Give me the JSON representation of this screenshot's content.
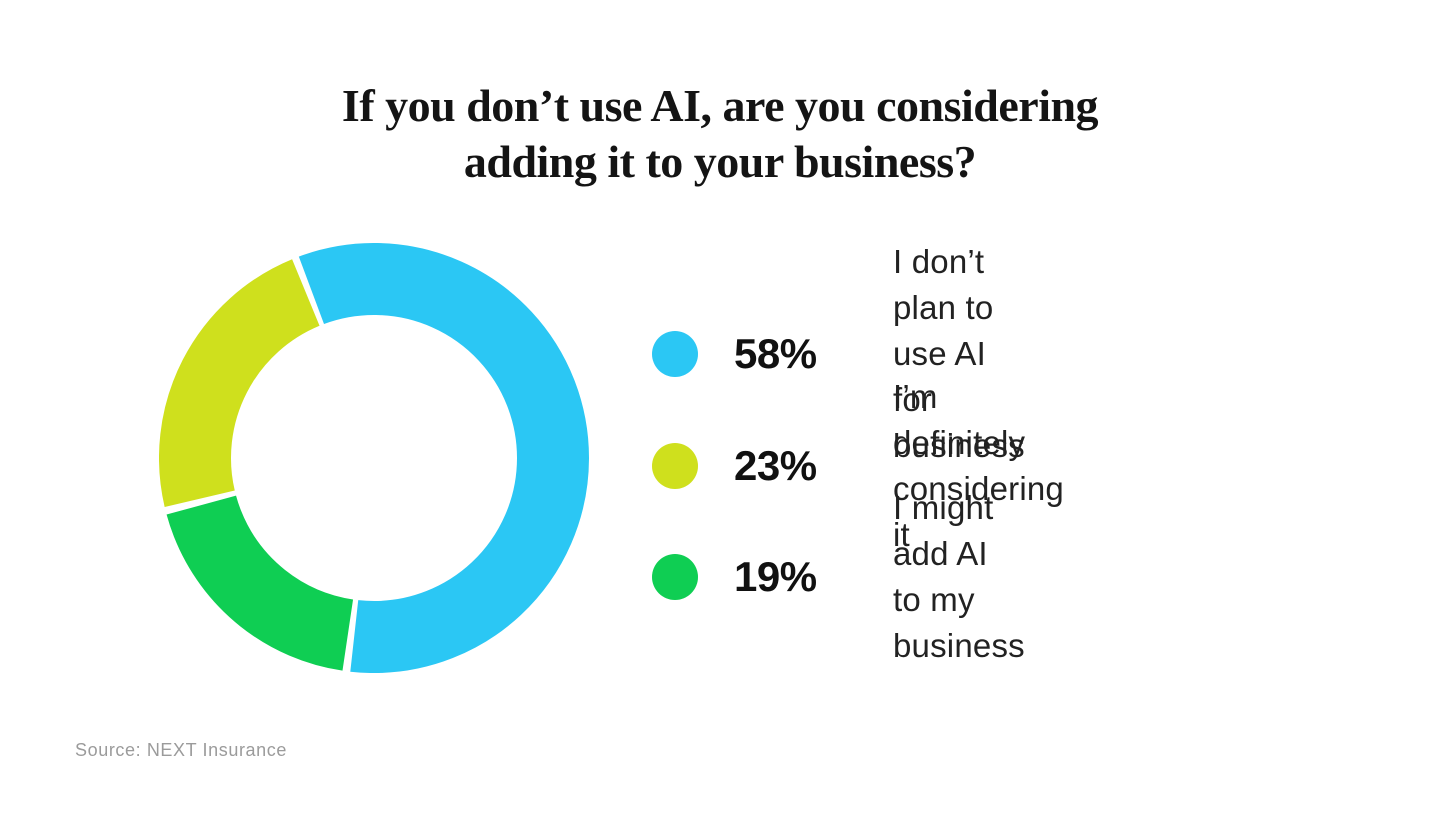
{
  "title": "If you don’t use AI, are you considering\nadding it to your business?",
  "source": "Source: NEXT Insurance",
  "colors": {
    "cyan": "#2bc7f4",
    "yellow": "#cfe01d",
    "green": "#0fce53",
    "title_text": "#141414",
    "label_text": "#222222",
    "muted_text": "#9b9b9b",
    "background": "#ffffff"
  },
  "chart_data": {
    "type": "pie",
    "variant": "donut",
    "title": "If you don’t use AI, are you considering adding it to your business?",
    "legend_position": "right",
    "items": [
      {
        "key": "no-plan",
        "value": 58,
        "unit": "%",
        "display": "58%",
        "color": "#2bc7f4",
        "label": "I don’t plan to use AI for\nbusiness"
      },
      {
        "key": "definitely-considering",
        "value": 23,
        "unit": "%",
        "display": "23%",
        "color": "#cfe01d",
        "label": "I’m definitely considering it"
      },
      {
        "key": "might-add",
        "value": 19,
        "unit": "%",
        "display": "19%",
        "color": "#0fce53",
        "label": "I might add AI to my\nbusiness"
      }
    ],
    "donut": {
      "start_angle_deg": -21.5,
      "clockwise_order": [
        0,
        2,
        1
      ],
      "outer_radius": 215,
      "inner_radius": 143,
      "gap_deg": 2.1
    },
    "source": "Source: NEXT Insurance"
  }
}
